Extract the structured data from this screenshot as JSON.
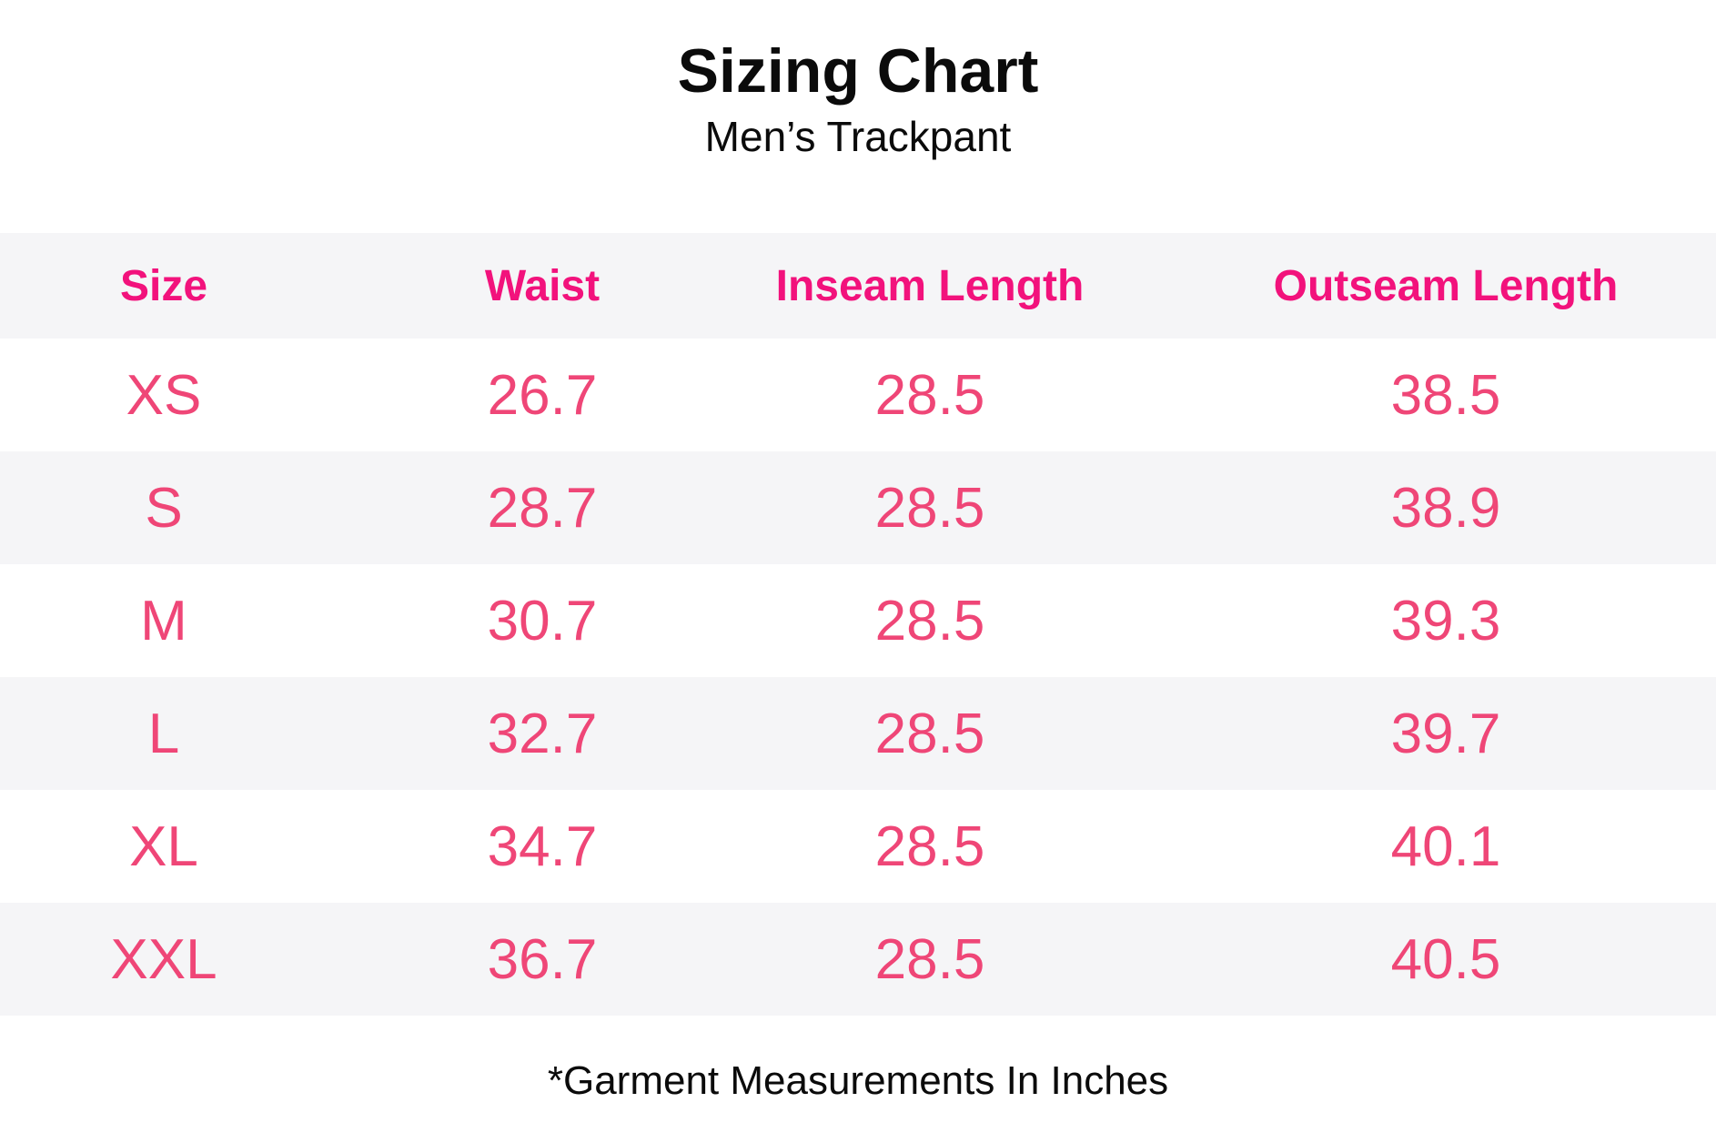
{
  "chart_data": {
    "type": "table",
    "title": "Sizing Chart",
    "subtitle": "Men’s Trackpant",
    "columns": [
      "Size",
      "Waist",
      "Inseam Length",
      "Outseam Length"
    ],
    "rows": [
      [
        "XS",
        26.7,
        28.5,
        38.5
      ],
      [
        "S",
        28.7,
        28.5,
        38.9
      ],
      [
        "M",
        30.7,
        28.5,
        39.3
      ],
      [
        "L",
        32.7,
        28.5,
        39.7
      ],
      [
        "XL",
        34.7,
        28.5,
        40.1
      ],
      [
        "XXL",
        36.7,
        28.5,
        40.5
      ]
    ],
    "footnote": "*Garment Measurements In Inches",
    "units": "inches",
    "layout_hints": {
      "striped": true,
      "header_background": "#F5F5F7",
      "stripe_background": "#F5F5F7"
    }
  },
  "colors": {
    "header_text": "#F2127C",
    "cell_text": "#EF4677",
    "band_gray": "#F5F5F7",
    "text_dark": "#0B0B0B",
    "page_bg": "#FFFFFF"
  }
}
